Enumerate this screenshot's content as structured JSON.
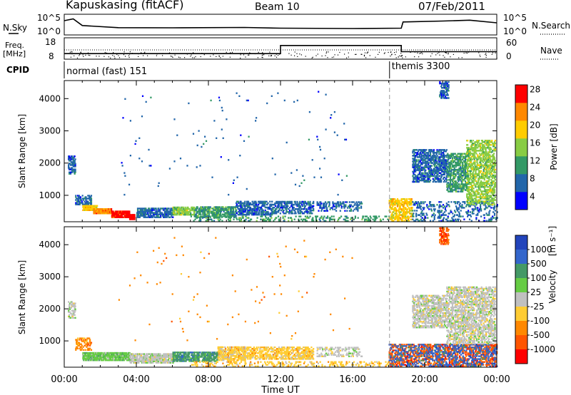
{
  "header": {
    "site": "Kapuskasing (fitACF)",
    "beam": "Beam 10",
    "date": "07/Feb/2011"
  },
  "noise_panel": {
    "left_label": "N.Sky",
    "right_label": "N.Search",
    "ticks_left": [
      "10^5",
      "10^0"
    ],
    "ticks_right": [
      "10^5",
      "10^0"
    ]
  },
  "freq_panel": {
    "left_label_line1": "Freq.",
    "left_label_line2": "[MHz]",
    "right_label": "Nave",
    "ticks_left": [
      "18",
      "8"
    ],
    "ticks_right": [
      "60",
      "0"
    ]
  },
  "cpid_panel": {
    "label": "CPID",
    "modes": [
      {
        "name": "normal (fast) 151",
        "start_hour": 0
      },
      {
        "name": "themis 3300",
        "start_hour": 18.05
      }
    ]
  },
  "time_axis": {
    "title": "Time UT",
    "ticks": [
      "00:00",
      "04:00",
      "08:00",
      "12:00",
      "16:00",
      "20:00",
      "00:00"
    ],
    "tick_hours": [
      0,
      4,
      8,
      12,
      16,
      20,
      24
    ]
  },
  "range_axis": {
    "title": "Slant Range [km]",
    "ticks": [
      "1000",
      "2000",
      "3000",
      "4000"
    ],
    "tick_values": [
      1000,
      2000,
      3000,
      4000
    ],
    "ylim": [
      180,
      4560
    ]
  },
  "power_scale": {
    "title": "Power [dB]",
    "ticks": [
      "4",
      "8",
      "12",
      "16",
      "20",
      "24",
      "28"
    ],
    "colors": [
      "#0000ff",
      "#2266aa",
      "#339966",
      "#88cc44",
      "#ffcc00",
      "#ff8800",
      "#ff0000"
    ]
  },
  "velocity_scale": {
    "title": "Velocity",
    "units": "[m s⁻¹]",
    "ticks": [
      "1000",
      "500",
      "100",
      "25",
      "-25",
      "-100",
      "-500",
      "-1000"
    ],
    "colors": [
      "#2244bb",
      "#3366cc",
      "#449966",
      "#66cc44",
      "#c0c0c0",
      "#ffcc33",
      "#ff8800",
      "#ff5500",
      "#ff0000"
    ]
  },
  "chart_data": {
    "type": "heatmap",
    "x_unit": "hours UT",
    "y_unit": "km",
    "xlim": [
      0,
      24
    ],
    "ylim": [
      180,
      4560
    ],
    "mode_change_hour": 18.05,
    "noise_sky": [
      {
        "hour": 0,
        "level": 0.72
      },
      {
        "hour": 0.5,
        "level": 0.82
      },
      {
        "hour": 1,
        "level": 0.45
      },
      {
        "hour": 3,
        "level": 0.33
      },
      {
        "hour": 6,
        "level": 0.32
      },
      {
        "hour": 10,
        "level": 0.34
      },
      {
        "hour": 12,
        "level": 0.3
      },
      {
        "hour": 16,
        "level": 0.28
      },
      {
        "hour": 18.7,
        "level": 0.3
      },
      {
        "hour": 18.8,
        "level": 0.65
      },
      {
        "hour": 21,
        "level": 0.7
      },
      {
        "hour": 22.5,
        "level": 0.75
      },
      {
        "hour": 24,
        "level": 0.6
      }
    ],
    "frequency_mhz": [
      {
        "hour": 0,
        "value": 10.6
      },
      {
        "hour": 12,
        "value": 10.6
      },
      {
        "hour": 12,
        "value": 14.4
      },
      {
        "hour": 18.7,
        "value": 14.4
      },
      {
        "hour": 18.7,
        "value": 11.5
      },
      {
        "hour": 24,
        "value": 11.5
      }
    ],
    "power_patches": [
      {
        "t0": 0.2,
        "t1": 0.6,
        "r0": 1650,
        "r1": 2200,
        "level": 1,
        "density": 0.5
      },
      {
        "t0": 0.6,
        "t1": 1.5,
        "r0": 700,
        "r1": 1000,
        "level": 1,
        "density": 0.5
      },
      {
        "t0": 1.0,
        "t1": 1.8,
        "r0": 520,
        "r1": 680,
        "level": 4,
        "density": 0.9
      },
      {
        "t0": 1.6,
        "t1": 2.6,
        "r0": 420,
        "r1": 600,
        "level": 5,
        "density": 0.9
      },
      {
        "t0": 2.6,
        "t1": 3.6,
        "r0": 300,
        "r1": 520,
        "level": 6,
        "density": 0.9
      },
      {
        "t0": 3.6,
        "t1": 3.9,
        "r0": 240,
        "r1": 380,
        "level": 7,
        "density": 0.9
      },
      {
        "t0": 4.0,
        "t1": 6.0,
        "r0": 300,
        "r1": 600,
        "level": 1,
        "density": 0.6
      },
      {
        "t0": 6.0,
        "t1": 7.2,
        "r0": 380,
        "r1": 650,
        "level": 3,
        "density": 0.6
      },
      {
        "t0": 7.2,
        "t1": 9.5,
        "r0": 300,
        "r1": 650,
        "level": 2,
        "density": 0.55
      },
      {
        "t0": 9.5,
        "t1": 11.5,
        "r0": 380,
        "r1": 800,
        "level": 1,
        "density": 0.5
      },
      {
        "t0": 11.5,
        "t1": 13.8,
        "r0": 420,
        "r1": 800,
        "level": 1,
        "density": 0.45
      },
      {
        "t0": 14.0,
        "t1": 16.5,
        "r0": 500,
        "r1": 800,
        "level": 1,
        "density": 0.25
      },
      {
        "t0": 7.0,
        "t1": 18.0,
        "r0": 190,
        "r1": 350,
        "level": 2,
        "density": 0.2
      },
      {
        "t0": 18.0,
        "t1": 19.3,
        "r0": 190,
        "r1": 900,
        "level": 4,
        "density": 0.45
      },
      {
        "t0": 19.3,
        "t1": 24.0,
        "r0": 190,
        "r1": 800,
        "level": 1,
        "density": 0.2
      },
      {
        "t0": 19.3,
        "t1": 21.2,
        "r0": 1400,
        "r1": 2400,
        "level": 1,
        "density": 0.5
      },
      {
        "t0": 21.2,
        "t1": 22.3,
        "r0": 1100,
        "r1": 2300,
        "level": 2,
        "density": 0.45
      },
      {
        "t0": 22.3,
        "t1": 23.9,
        "r0": 700,
        "r1": 2700,
        "level": 3,
        "density": 0.45
      },
      {
        "t0": 20.8,
        "t1": 21.3,
        "r0": 4000,
        "r1": 4500,
        "level": 1,
        "density": 0.5
      },
      {
        "t0": 3.0,
        "t1": 16.0,
        "r0": 1000,
        "r1": 4200,
        "level": 1,
        "density": 0.004
      }
    ],
    "velocity_patches": [
      {
        "t0": 0.2,
        "t1": 0.6,
        "r0": 1700,
        "r1": 2200,
        "level": 4,
        "density": 0.45
      },
      {
        "t0": 0.6,
        "t1": 1.5,
        "r0": 700,
        "r1": 1100,
        "level": 6,
        "density": 0.35
      },
      {
        "t0": 1.0,
        "t1": 3.6,
        "r0": 380,
        "r1": 650,
        "level": 3,
        "density": 0.8
      },
      {
        "t0": 3.6,
        "t1": 6.0,
        "r0": 300,
        "r1": 600,
        "level": 4,
        "density": 0.7
      },
      {
        "t0": 6.0,
        "t1": 8.5,
        "r0": 350,
        "r1": 650,
        "level": 2,
        "density": 0.6
      },
      {
        "t0": 8.5,
        "t1": 10.0,
        "r0": 380,
        "r1": 800,
        "level": 5,
        "density": 0.55
      },
      {
        "t0": 10.0,
        "t1": 13.8,
        "r0": 420,
        "r1": 800,
        "level": 5,
        "density": 0.5
      },
      {
        "t0": 14.0,
        "t1": 16.5,
        "r0": 500,
        "r1": 800,
        "level": 4,
        "density": 0.25
      },
      {
        "t0": 7.0,
        "t1": 18.0,
        "r0": 190,
        "r1": 350,
        "level": 5,
        "density": 0.2
      },
      {
        "t0": 18.0,
        "t1": 24.0,
        "r0": 190,
        "r1": 900,
        "level": 7,
        "density": 0.35
      },
      {
        "t0": 18.0,
        "t1": 24.0,
        "r0": 190,
        "r1": 900,
        "level": 1,
        "density": 0.2
      },
      {
        "t0": 19.3,
        "t1": 21.2,
        "r0": 1400,
        "r1": 2400,
        "level": 4,
        "density": 0.5
      },
      {
        "t0": 21.2,
        "t1": 23.9,
        "r0": 900,
        "r1": 2700,
        "level": 4,
        "density": 0.45
      },
      {
        "t0": 20.8,
        "t1": 21.3,
        "r0": 4000,
        "r1": 4500,
        "level": 7,
        "density": 0.5
      },
      {
        "t0": 3.0,
        "t1": 16.0,
        "r0": 1000,
        "r1": 4200,
        "level": 6,
        "density": 0.004
      }
    ]
  }
}
